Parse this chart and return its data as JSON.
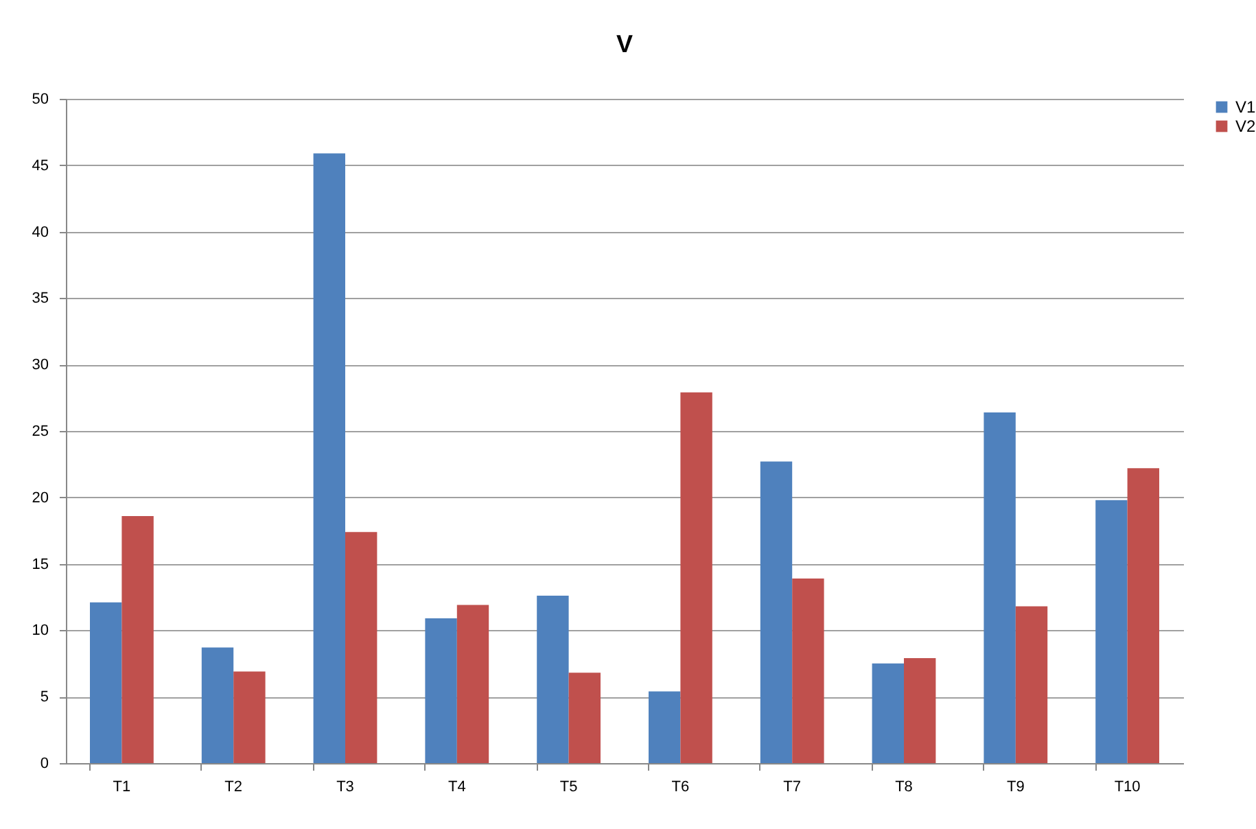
{
  "chart_data": {
    "type": "bar",
    "title": "V",
    "categories": [
      "T1",
      "T2",
      "T3",
      "T4",
      "T5",
      "T6",
      "T7",
      "T8",
      "T9",
      "T10"
    ],
    "series": [
      {
        "name": "V1",
        "color": "#4f81bd",
        "values": [
          12.1,
          8.7,
          45.9,
          10.9,
          12.6,
          5.4,
          22.7,
          7.5,
          26.4,
          19.8
        ]
      },
      {
        "name": "V2",
        "color": "#c0504d",
        "values": [
          18.6,
          6.9,
          17.4,
          11.9,
          6.8,
          27.9,
          13.9,
          7.9,
          11.8,
          22.2
        ]
      }
    ],
    "ylim": [
      0,
      50
    ],
    "yticks": [
      0,
      5,
      10,
      15,
      20,
      25,
      30,
      35,
      40,
      45,
      50
    ],
    "grid": "y",
    "legend": "right"
  }
}
